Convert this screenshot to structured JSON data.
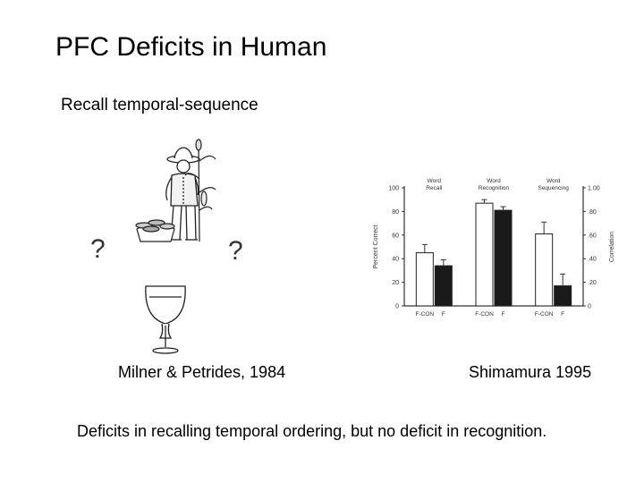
{
  "slide": {
    "title": "PFC Deficits in Human",
    "subtitle": "Recall temporal-sequence",
    "caption_left": "Milner & Petrides, 1984",
    "caption_right": "Shimamura 1995",
    "conclusion": "Deficits in recalling temporal ordering, but no deficit in recognition."
  },
  "illustration": {
    "question_mark": "?"
  },
  "chart_data": {
    "type": "bar",
    "groups": [
      "Word Recall",
      "Word Recognition",
      "Word Sequencing"
    ],
    "group_label_lines": [
      [
        "Word",
        "Recall"
      ],
      [
        "Word",
        "Recognition"
      ],
      [
        "Word",
        "Sequencing"
      ]
    ],
    "bar_labels": [
      "F-CON",
      "F"
    ],
    "series": [
      {
        "name": "F-CON",
        "fill": "#ffffff",
        "values": [
          45,
          87,
          61
        ],
        "errors": [
          7,
          3,
          10
        ]
      },
      {
        "name": "F",
        "fill": "#1a1a1a",
        "values": [
          34,
          81,
          17
        ],
        "errors": [
          5,
          3,
          10
        ]
      }
    ],
    "ylabel": "Percent Correct",
    "y2label": "Correlation",
    "ylim": [
      0,
      100
    ],
    "y_ticks": [
      "100",
      "80",
      "60",
      "40",
      "20",
      "0"
    ],
    "y2_ticks": [
      "1.00",
      ".80",
      ".60",
      ".40",
      ".20",
      "0"
    ],
    "grid": false
  }
}
